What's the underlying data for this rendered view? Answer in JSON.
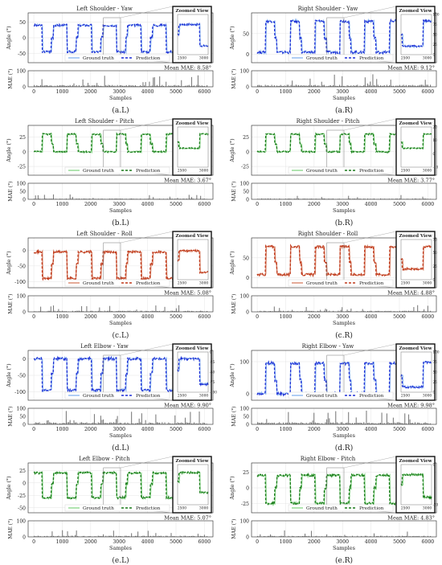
{
  "figure": {
    "colors": {
      "yaw": "#1f2fd6",
      "yaw_gt": "#8fb8f0",
      "pitch": "#1a7a1a",
      "pitch_gt": "#8fd88f",
      "roll": "#c0391b",
      "roll_gt": "#d8866c",
      "mae_bar": "#7f7f7f",
      "zoom_box": "#111111"
    }
  },
  "chart_data": [
    {
      "id": "aL",
      "type": "line",
      "title": "Left Shoulder - Yaw",
      "caption": "(a.L)",
      "channel": "yaw",
      "ylabel": "Angle (°)",
      "yticks": [
        50,
        0,
        -50
      ],
      "ylim": [
        -80,
        80
      ],
      "xlim": [
        -200,
        6300
      ],
      "xticks": [
        0,
        1000,
        2000,
        3000,
        4000,
        5000,
        6000
      ],
      "base": 40,
      "amp": -85,
      "cycles": 7,
      "xlabel": "Samples",
      "series": [
        "Ground truth",
        "Prediction"
      ],
      "zoom": {
        "title": "Zoomed View",
        "xticks": [
          2500,
          3000
        ],
        "yticks": []
      },
      "mae": {
        "ylabel": "MAE (°)",
        "yticks": [
          0,
          100
        ],
        "ylim": [
          0,
          100
        ],
        "level": 8.58,
        "text": "Mean MAE: 8.58°"
      }
    },
    {
      "id": "aR",
      "type": "line",
      "title": "Right Shoulder - Yaw",
      "caption": "(a.R)",
      "channel": "yaw",
      "ylabel": "Angle (°)",
      "yticks": [
        50,
        0
      ],
      "ylim": [
        -20,
        100
      ],
      "xlim": [
        -200,
        6300
      ],
      "xticks": [
        0,
        1000,
        2000,
        3000,
        4000,
        5000,
        6000
      ],
      "base": 5,
      "amp": 75,
      "cycles": 7,
      "xlabel": "Samples",
      "series": [
        "Ground truth",
        "Prediction"
      ],
      "zoom": {
        "title": "Zoomed View",
        "xticks": [
          2500,
          3000
        ],
        "yticks": [
          100,
          75,
          50,
          25,
          0
        ]
      },
      "mae": {
        "ylabel": "MAE (°)",
        "yticks": [
          0,
          100
        ],
        "ylim": [
          0,
          100
        ],
        "level": 9.12,
        "text": "Mean MAE: 9.12°"
      }
    },
    {
      "id": "bL",
      "type": "line",
      "title": "Left Shoulder - Pitch",
      "caption": "(b.L)",
      "channel": "pitch",
      "ylabel": "Angle (°)",
      "yticks": [
        25,
        0,
        -25
      ],
      "ylim": [
        -40,
        45
      ],
      "xlim": [
        -200,
        6300
      ],
      "xticks": [
        0,
        1000,
        2000,
        3000,
        4000,
        5000,
        6000
      ],
      "base": 0,
      "amp": 30,
      "cycles": 7,
      "xlabel": "Samples",
      "series": [
        "Ground truth",
        "Prediction"
      ],
      "zoom": {
        "title": "Zoomed View",
        "xticks": [
          2500,
          3000
        ],
        "yticks": []
      },
      "mae": {
        "ylabel": "MAE (°)",
        "yticks": [
          0,
          50,
          100
        ],
        "ylim": [
          0,
          100
        ],
        "level": 3.67,
        "text": "Mean MAE: 3.67°"
      }
    },
    {
      "id": "bR",
      "type": "line",
      "title": "Right Shoulder - Pitch",
      "caption": "(b.R)",
      "channel": "pitch",
      "ylabel": "Angle (°)",
      "yticks": [
        25,
        0,
        -25
      ],
      "ylim": [
        -40,
        45
      ],
      "xlim": [
        -200,
        6300
      ],
      "xticks": [
        0,
        1000,
        2000,
        3000,
        4000,
        5000,
        6000
      ],
      "base": 0,
      "amp": 30,
      "cycles": 7,
      "xlabel": "Samples",
      "series": [
        "Ground truth",
        "Prediction"
      ],
      "zoom": {
        "title": "Zoomed View",
        "xticks": [
          2500,
          3000
        ],
        "yticks": [
          20,
          10,
          0,
          -10
        ]
      },
      "mae": {
        "ylabel": "MAE (°)",
        "yticks": [
          0,
          50,
          100
        ],
        "ylim": [
          0,
          100
        ],
        "level": 3.77,
        "text": "Mean MAE: 3.77°"
      }
    },
    {
      "id": "cL",
      "type": "line",
      "title": "Left Shoulder - Roll",
      "caption": "(c.L)",
      "channel": "roll",
      "ylabel": "Angle (°)",
      "yticks": [
        0,
        -50,
        -100
      ],
      "ylim": [
        -120,
        40
      ],
      "xlim": [
        -200,
        6300
      ],
      "xticks": [
        0,
        1000,
        2000,
        3000,
        4000,
        5000,
        6000
      ],
      "base": -5,
      "amp": -85,
      "cycles": 7,
      "xlabel": "Samples",
      "series": [
        "Ground truth",
        "Prediction"
      ],
      "zoom": {
        "title": "Zoomed View",
        "xticks": [
          2500,
          3000
        ],
        "yticks": []
      },
      "mae": {
        "ylabel": "MAE (°)",
        "yticks": [
          0,
          100
        ],
        "ylim": [
          0,
          100
        ],
        "level": 5.08,
        "text": "Mean MAE: 5.08°"
      }
    },
    {
      "id": "cR",
      "type": "line",
      "title": "Right Shoulder - Roll",
      "caption": "(c.R)",
      "channel": "roll",
      "ylabel": "Angle (°)",
      "yticks": [
        50,
        0
      ],
      "ylim": [
        -25,
        100
      ],
      "xlim": [
        -200,
        6300
      ],
      "xticks": [
        0,
        1000,
        2000,
        3000,
        4000,
        5000,
        6000
      ],
      "base": 8,
      "amp": 70,
      "cycles": 7,
      "xlabel": "Samples",
      "series": [
        "Ground truth",
        "Prediction"
      ],
      "zoom": {
        "title": "Zoomed View",
        "xticks": [
          2500,
          3000
        ],
        "yticks": [
          75,
          50,
          25,
          0
        ]
      },
      "mae": {
        "ylabel": "MAE (°)",
        "yticks": [
          0,
          100
        ],
        "ylim": [
          0,
          100
        ],
        "level": 4.88,
        "text": "Mean MAE: 4.88°"
      }
    },
    {
      "id": "dL",
      "type": "line",
      "title": "Left Elbow - Yaw",
      "caption": "(d.L)",
      "channel": "yaw",
      "ylabel": "Angle (°)",
      "yticks": [
        0,
        -50,
        -100
      ],
      "ylim": [
        -125,
        25
      ],
      "xlim": [
        -200,
        6300
      ],
      "xticks": [
        0,
        1000,
        2000,
        3000,
        4000,
        5000,
        6000
      ],
      "base": 0,
      "amp": -95,
      "cycles": 7,
      "xlabel": "Samples",
      "series": [
        "Ground truth",
        "Prediction"
      ],
      "zoom": {
        "title": "Zoomed View",
        "xticks": [
          2500,
          3000
        ],
        "yticks": [
          0,
          -25,
          -50,
          -75,
          -100
        ]
      },
      "mae": {
        "ylabel": "MAE (°)",
        "yticks": [
          0,
          50,
          100
        ],
        "ylim": [
          0,
          100
        ],
        "level": 9.9,
        "text": "Mean MAE: 9.90°"
      }
    },
    {
      "id": "dR",
      "type": "line",
      "title": "Right Elbow - Yaw",
      "caption": "(d.R)",
      "channel": "yaw",
      "ylabel": "Angle (°)",
      "yticks": [
        100,
        0
      ],
      "ylim": [
        -20,
        135
      ],
      "xlim": [
        -200,
        6300
      ],
      "xticks": [
        0,
        1000,
        2000,
        3000,
        4000,
        5000,
        6000
      ],
      "base": 0,
      "amp": 95,
      "cycles": 7,
      "xlabel": "Samples",
      "series": [
        "Ground truth",
        "Prediction"
      ],
      "zoom": {
        "title": "Zoomed View",
        "xticks": [
          2500,
          3000
        ],
        "yticks": [
          100,
          75,
          50,
          25,
          0
        ]
      },
      "mae": {
        "ylabel": "MAE (°)",
        "yticks": [
          0,
          50,
          100
        ],
        "ylim": [
          0,
          100
        ],
        "level": 9.98,
        "text": "Mean MAE: 9.98°"
      }
    },
    {
      "id": "eL",
      "type": "line",
      "title": "Left Elbow - Pitch",
      "caption": "(e.L)",
      "channel": "pitch",
      "ylabel": "Angle (°)",
      "yticks": [
        25,
        0,
        -25,
        -50
      ],
      "ylim": [
        -60,
        40
      ],
      "xlim": [
        -200,
        6300
      ],
      "xticks": [
        0,
        1000,
        2000,
        3000,
        4000,
        5000,
        6000
      ],
      "base": 20,
      "amp": -50,
      "cycles": 7,
      "xlabel": "Samples",
      "series": [
        "Ground truth",
        "Prediction"
      ],
      "zoom": {
        "title": "Zoomed View",
        "xticks": [
          2500,
          3000
        ],
        "yticks": []
      },
      "mae": {
        "ylabel": "MAE (°)",
        "yticks": [
          0,
          100
        ],
        "ylim": [
          0,
          100
        ],
        "level": 5.07,
        "text": "Mean MAE: 5.07°"
      }
    },
    {
      "id": "eR",
      "type": "line",
      "title": "Right Elbow - Pitch",
      "caption": "(e.R)",
      "channel": "pitch",
      "ylabel": "Angle (°)",
      "yticks": [
        25,
        0,
        -25
      ],
      "ylim": [
        -40,
        40
      ],
      "xlim": [
        -200,
        6300
      ],
      "xticks": [
        0,
        1000,
        2000,
        3000,
        4000,
        5000,
        6000
      ],
      "base": 20,
      "amp": -45,
      "cycles": 7,
      "xlabel": "Samples",
      "series": [
        "Ground truth",
        "Prediction"
      ],
      "zoom": {
        "title": "Zoomed View",
        "xticks": [
          2500,
          3000
        ],
        "yticks": [
          0,
          -20
        ]
      },
      "mae": {
        "ylabel": "MAE (°)",
        "yticks": [
          0,
          100
        ],
        "ylim": [
          0,
          100
        ],
        "level": 4.83,
        "text": "Mean MAE: 4.83°"
      }
    }
  ]
}
